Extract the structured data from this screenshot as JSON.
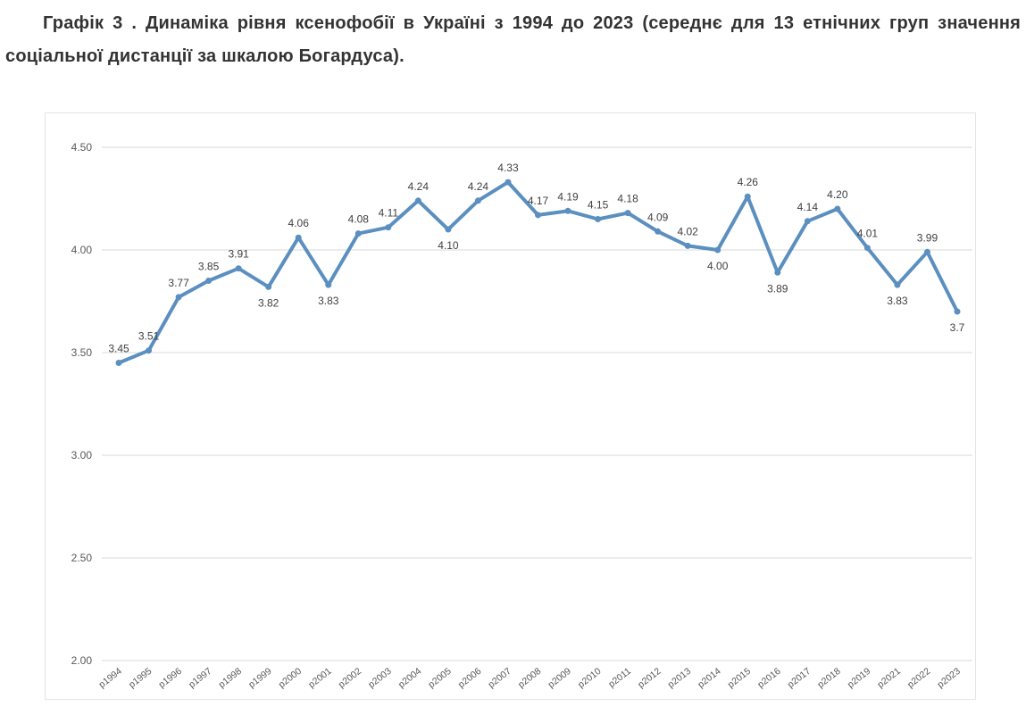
{
  "heading": {
    "title": "Графік 3 . Динаміка рівня ксенофобії в Україні з 1994 до 2023 (середнє для 13 етнічних груп значення соціальної дистанції за шкалою Богардуса)."
  },
  "chart_data": {
    "type": "line",
    "title": "",
    "xlabel": "",
    "ylabel": "",
    "ylim": [
      2.0,
      4.5
    ],
    "yticks": [
      "2.00",
      "2.50",
      "3.00",
      "3.50",
      "4.00",
      "4.50"
    ],
    "grid": true,
    "legend": "none",
    "categories": [
      "р1994",
      "р1995",
      "р1996",
      "р1997",
      "р1998",
      "р1999",
      "р2000",
      "р2001",
      "р2002",
      "р2003",
      "р2004",
      "р2005",
      "р2006",
      "р2007",
      "р2008",
      "р2009",
      "р2010",
      "р2011",
      "р2012",
      "р2013",
      "р2014",
      "р2015",
      "р2016",
      "р2017",
      "р2018",
      "р2019",
      "р2021",
      "р2022",
      "р2023"
    ],
    "series": [
      {
        "values": [
          3.45,
          3.51,
          3.77,
          3.85,
          3.91,
          3.82,
          4.06,
          3.83,
          4.08,
          4.11,
          4.24,
          4.1,
          4.24,
          4.33,
          4.17,
          4.19,
          4.15,
          4.18,
          4.09,
          4.02,
          4.0,
          4.26,
          3.89,
          4.14,
          4.2,
          4.01,
          3.83,
          3.99,
          3.7
        ],
        "labels": [
          "3.45",
          "3.51",
          "3.77",
          "3.85",
          "3.91",
          "3.82",
          "4.06",
          "3.83",
          "4.08",
          "4.11",
          "4.24",
          "4.10",
          "4.24",
          "4.33",
          "4.17",
          "4.19",
          "4.15",
          "4.18",
          "4.09",
          "4.02",
          "4.00",
          "4.26",
          "3.89",
          "4.14",
          "4.20",
          "4.01",
          "3.83",
          "3.99",
          "3.7"
        ],
        "label_positions": [
          "above",
          "above",
          "above",
          "above",
          "above",
          "below",
          "above",
          "below",
          "above",
          "above",
          "above",
          "below",
          "above",
          "above",
          "above",
          "above",
          "above",
          "above",
          "above",
          "above",
          "below",
          "above",
          "below",
          "above",
          "above",
          "above",
          "below",
          "above",
          "below"
        ],
        "color": "#5b8fbf"
      }
    ],
    "colors": {
      "line": "#5b8fbf",
      "grid": "#d9d9d9",
      "axis_text": "#595959",
      "label_text": "#404040"
    }
  }
}
